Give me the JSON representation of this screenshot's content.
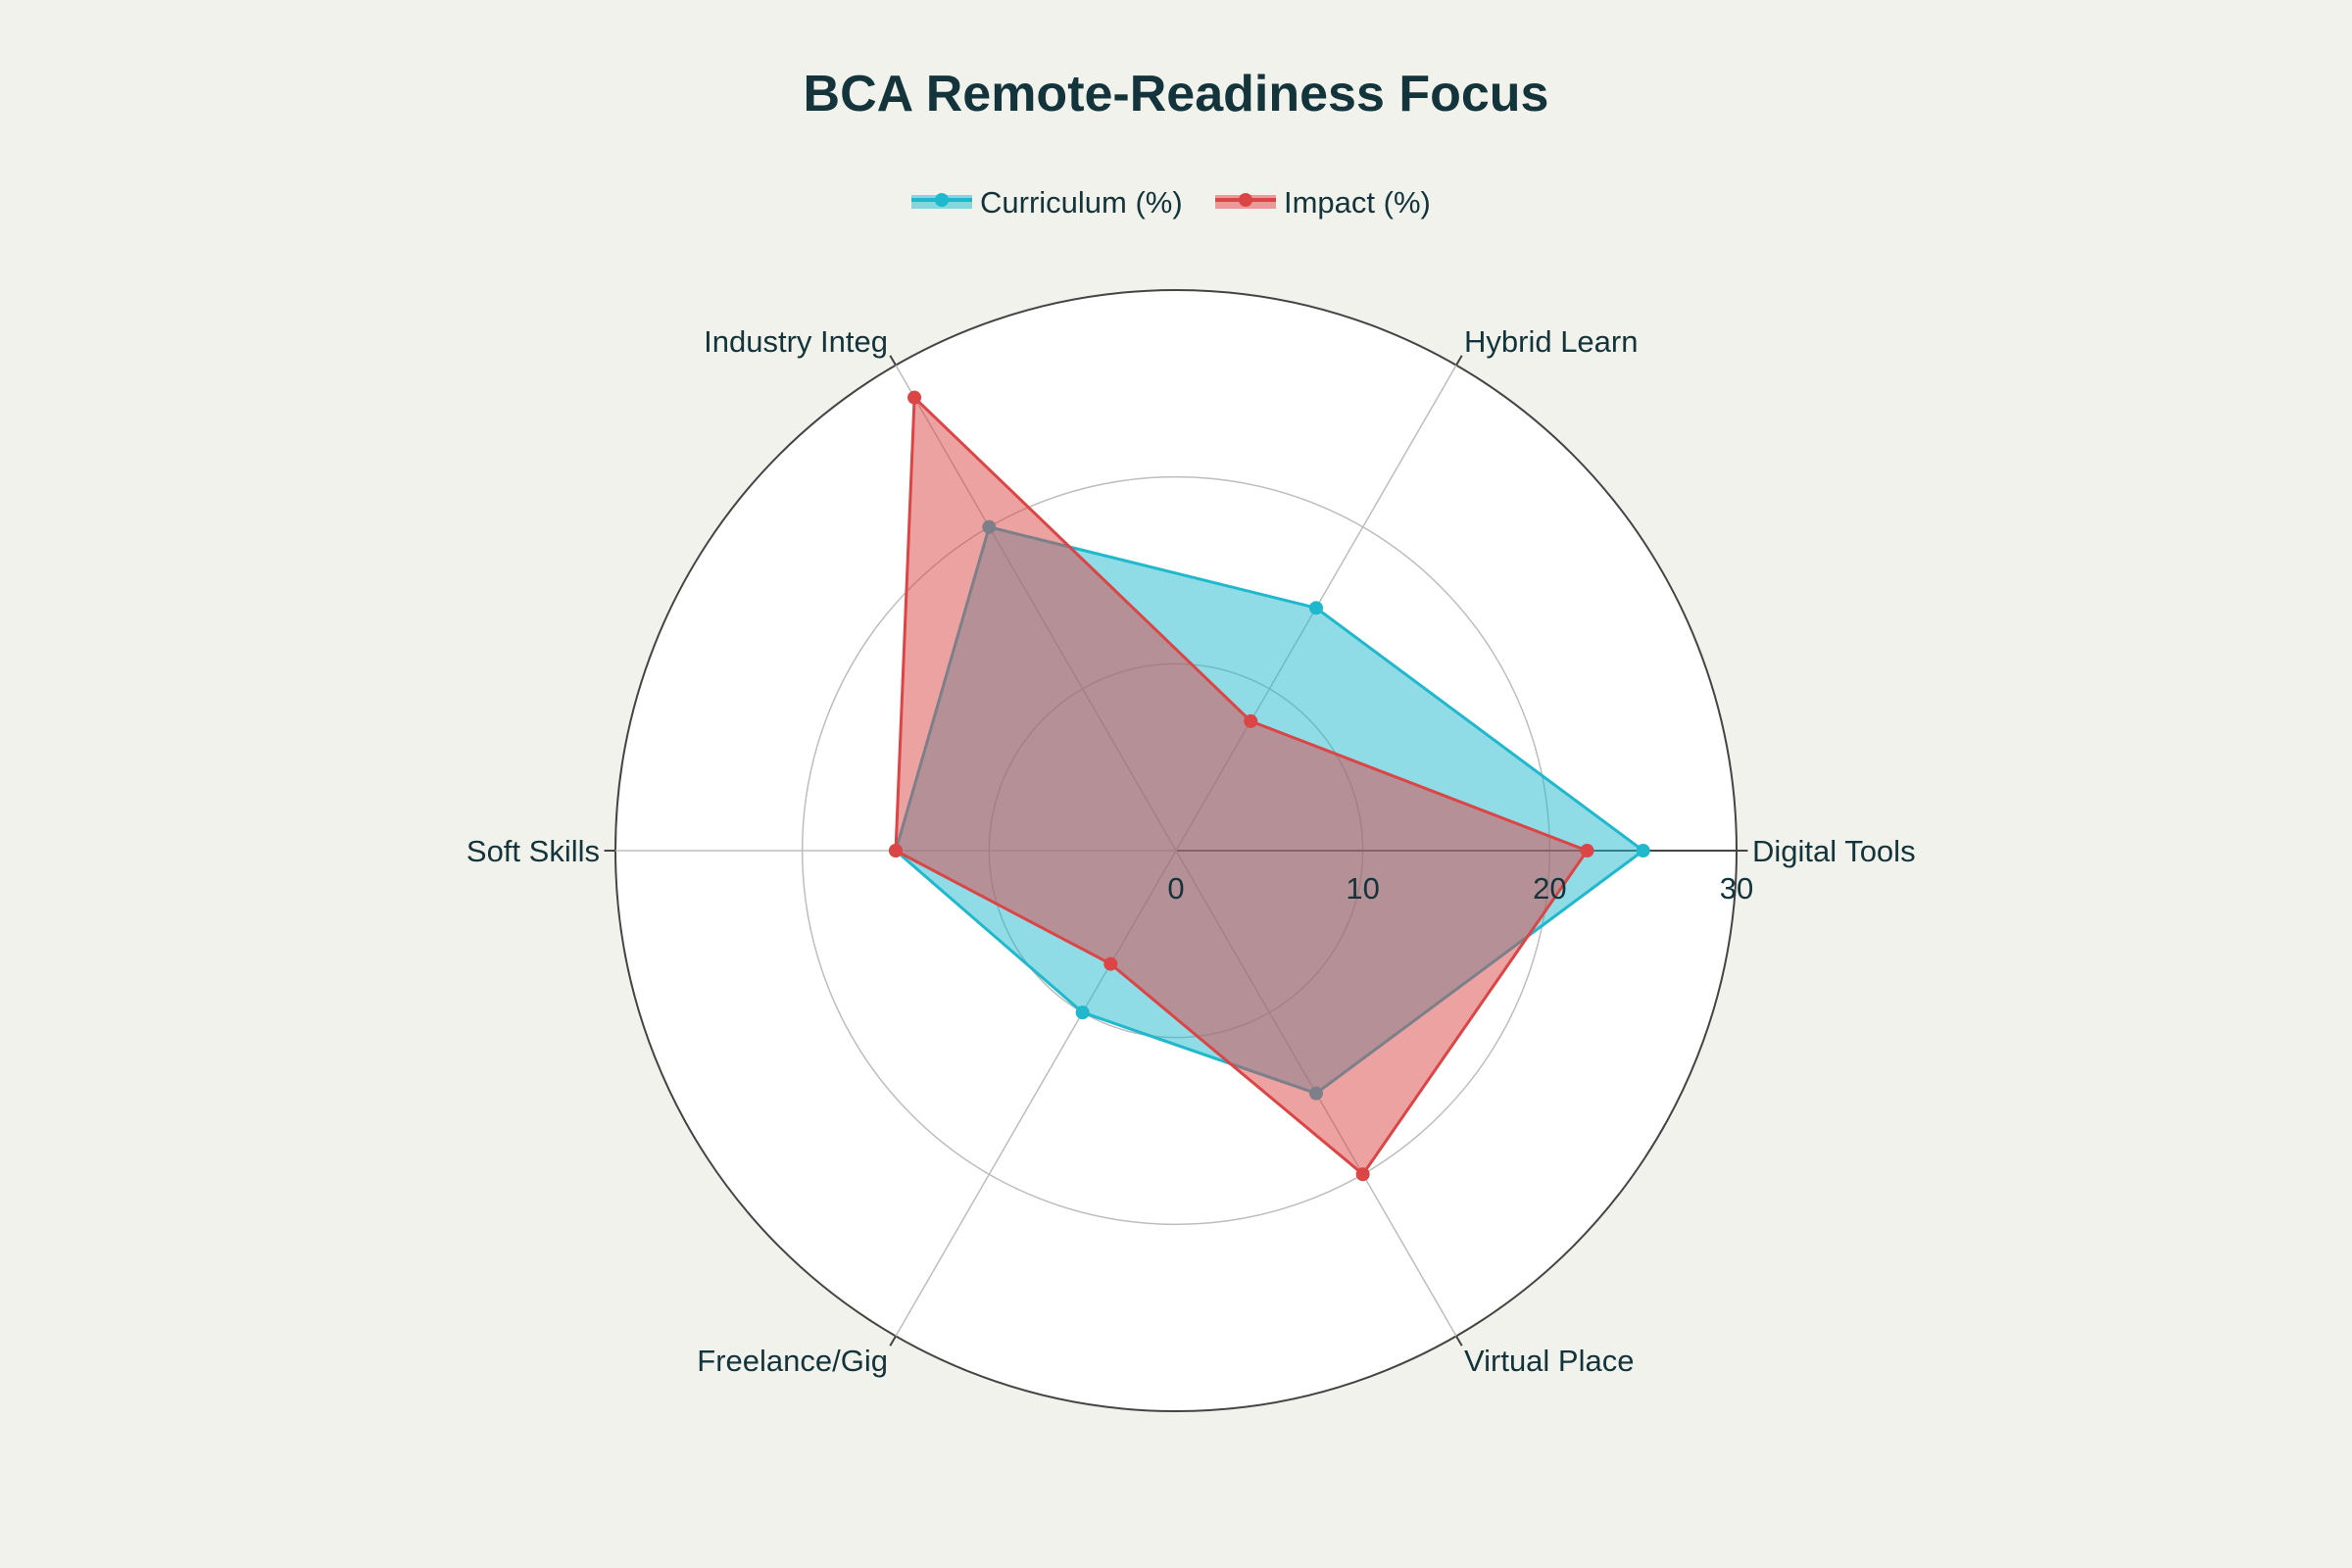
{
  "chart_data": {
    "type": "radar",
    "title": "BCA Remote-Readiness Focus",
    "categories": [
      "Digital Tools",
      "Hybrid Learn",
      "Industry Integ",
      "Soft Skills",
      "Freelance/Gig",
      "Virtual Place"
    ],
    "series": [
      {
        "name": "Curriculum (%)",
        "values": [
          25,
          15,
          20,
          15,
          10,
          15
        ],
        "color": "#1fb8cd"
      },
      {
        "name": "Impact (%)",
        "values": [
          22,
          8,
          28,
          15,
          7,
          20
        ],
        "color": "#db4545"
      }
    ],
    "radial_range": [
      0,
      30
    ],
    "radial_ticks": [
      0,
      10,
      20,
      30
    ],
    "grid": true,
    "legend_position": "top-center"
  }
}
